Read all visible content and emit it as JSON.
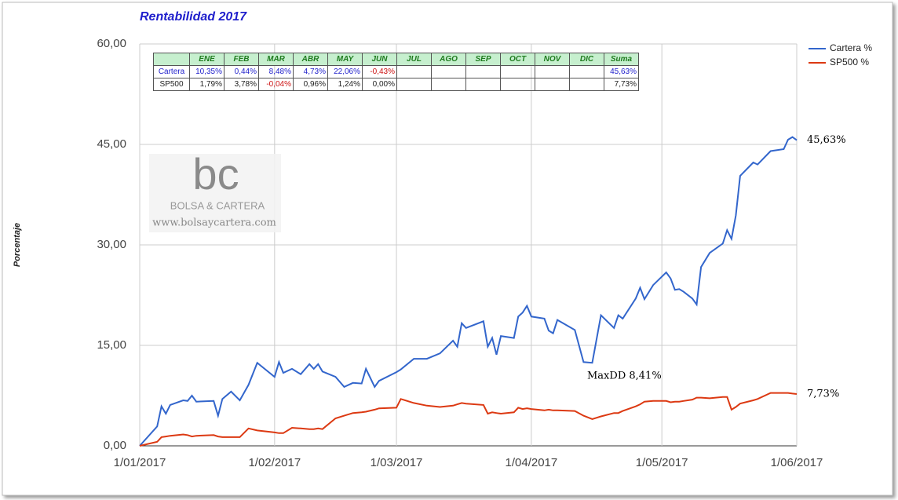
{
  "chart_data": {
    "type": "line",
    "title": "Rentabilidad 2017",
    "y_label": "Porcentaje",
    "x": [
      "1/01/2017",
      "5/01/2017",
      "6/01/2017",
      "7/01/2017",
      "8/01/2017",
      "11/01/2017",
      "12/01/2017",
      "13/01/2017",
      "14/01/2017",
      "18/01/2017",
      "19/01/2017",
      "20/01/2017",
      "22/01/2017",
      "24/01/2017",
      "26/01/2017",
      "28/01/2017",
      "1/02/2017",
      "2/02/2017",
      "3/02/2017",
      "5/02/2017",
      "7/02/2017",
      "9/02/2017",
      "10/02/2017",
      "11/02/2017",
      "12/02/2017",
      "15/02/2017",
      "17/02/2017",
      "19/02/2017",
      "21/02/2017",
      "22/02/2017",
      "24/02/2017",
      "25/02/2017",
      "1/03/2017",
      "2/03/2017",
      "5/03/2017",
      "8/03/2017",
      "11/03/2017",
      "14/03/2017",
      "15/03/2017",
      "16/03/2017",
      "17/03/2017",
      "21/03/2017",
      "22/03/2017",
      "23/03/2017",
      "24/03/2017",
      "25/03/2017",
      "28/03/2017",
      "29/03/2017",
      "30/03/2017",
      "31/03/2017",
      "1/04/2017",
      "4/04/2017",
      "5/04/2017",
      "6/04/2017",
      "7/04/2017",
      "11/04/2017",
      "13/04/2017",
      "15/04/2017",
      "17/04/2017",
      "20/04/2017",
      "21/04/2017",
      "22/04/2017",
      "25/04/2017",
      "26/04/2017",
      "27/04/2017",
      "29/04/2017",
      "2/05/2017",
      "3/05/2017",
      "4/05/2017",
      "5/05/2017",
      "6/05/2017",
      "8/05/2017",
      "9/05/2017",
      "10/05/2017",
      "12/05/2017",
      "15/05/2017",
      "16/05/2017",
      "17/05/2017",
      "18/05/2017",
      "19/05/2017",
      "22/05/2017",
      "23/05/2017",
      "26/05/2017",
      "29/05/2017",
      "30/05/2017",
      "31/05/2017",
      "1/06/2017"
    ],
    "series": [
      {
        "name": "Cartera %",
        "color": "#3366cc",
        "values": [
          0,
          2.9,
          5.9,
          4.8,
          6.1,
          6.8,
          6.7,
          7.5,
          6.6,
          6.7,
          4.5,
          7.0,
          8.1,
          6.8,
          9.1,
          12.4,
          10.3,
          12.5,
          10.9,
          11.5,
          10.7,
          12.2,
          11.5,
          12.2,
          11.1,
          10.3,
          8.8,
          9.4,
          9.3,
          11.5,
          8.8,
          9.7,
          11.0,
          11.4,
          13.0,
          13.0,
          13.8,
          15.7,
          14.8,
          18.3,
          17.6,
          18.6,
          14.8,
          16.1,
          13.6,
          16.4,
          16.1,
          19.3,
          19.9,
          20.9,
          19.3,
          19.0,
          17.2,
          16.8,
          18.8,
          17.3,
          12.5,
          12.4,
          19.5,
          17.6,
          19.5,
          19.0,
          22.0,
          23.6,
          21.9,
          24.0,
          25.9,
          25.0,
          23.3,
          23.4,
          23.0,
          22.0,
          21.1,
          26.7,
          28.8,
          30.2,
          32.2,
          30.9,
          34.4,
          40.3,
          42.3,
          42.0,
          44.0,
          44.3,
          45.7,
          46.1,
          45.63
        ]
      },
      {
        "name": "SP500 %",
        "color": "#dc3912",
        "values": [
          0,
          0.6,
          1.3,
          1.4,
          1.5,
          1.7,
          1.6,
          1.4,
          1.5,
          1.6,
          1.4,
          1.3,
          1.3,
          1.3,
          2.6,
          2.3,
          2.0,
          1.9,
          1.9,
          2.7,
          2.6,
          2.5,
          2.5,
          2.6,
          2.5,
          4.1,
          4.5,
          4.9,
          5.0,
          5.1,
          5.4,
          5.6,
          5.7,
          7.0,
          6.4,
          6.0,
          5.8,
          6.0,
          6.2,
          6.4,
          6.3,
          6.1,
          4.8,
          5.0,
          4.9,
          4.8,
          5.0,
          5.7,
          5.5,
          5.6,
          5.5,
          5.3,
          5.4,
          5.3,
          5.3,
          5.2,
          4.5,
          4.0,
          4.4,
          4.9,
          4.9,
          5.2,
          5.9,
          6.2,
          6.6,
          6.7,
          6.7,
          6.5,
          6.6,
          6.6,
          6.7,
          6.9,
          7.2,
          7.2,
          7.1,
          7.3,
          7.3,
          5.4,
          5.8,
          6.3,
          6.8,
          7.0,
          7.9,
          7.9,
          7.9,
          7.8,
          7.73
        ]
      }
    ],
    "xlim": [
      "1/01/2017",
      "1/06/2017"
    ],
    "xticks": [
      "1/01/2017",
      "1/02/2017",
      "1/03/2017",
      "1/04/2017",
      "1/05/2017",
      "1/06/2017"
    ],
    "ylim": [
      0,
      60
    ],
    "yticks": [
      {
        "value": 0,
        "label": "0,00"
      },
      {
        "value": 15,
        "label": "15,00"
      },
      {
        "value": 30,
        "label": "30,00"
      },
      {
        "value": 45,
        "label": "45,00"
      },
      {
        "value": 60,
        "label": "60,00"
      }
    ],
    "grid": true,
    "legend": "right",
    "end_labels": [
      "45,63%",
      "7,73%"
    ],
    "annotation": "MaxDD 8,41%"
  },
  "table": {
    "header": [
      "ENE",
      "FEB",
      "MAR",
      "ABR",
      "MAY",
      "JUN",
      "JUL",
      "AGO",
      "SEP",
      "OCT",
      "NOV",
      "DIC",
      "Suma"
    ],
    "rows": [
      {
        "label": "Cartera",
        "color": "#2222cc",
        "cells": [
          "10,35%",
          "0,44%",
          "8,48%",
          "4,73%",
          "22,06%",
          "-0,43%",
          null,
          null,
          null,
          null,
          null,
          null,
          "45,63%"
        ]
      },
      {
        "label": "SP500",
        "color": "#222222",
        "cells": [
          "1,79%",
          "3,78%",
          "-0,04%",
          "0,96%",
          "1,24%",
          "0,00%",
          null,
          null,
          null,
          null,
          null,
          null,
          "7,73%"
        ]
      }
    ]
  },
  "watermark": {
    "logo": "bc",
    "name": "BOLSA & CARTERA",
    "url": "www.bolsaycartera.com"
  }
}
